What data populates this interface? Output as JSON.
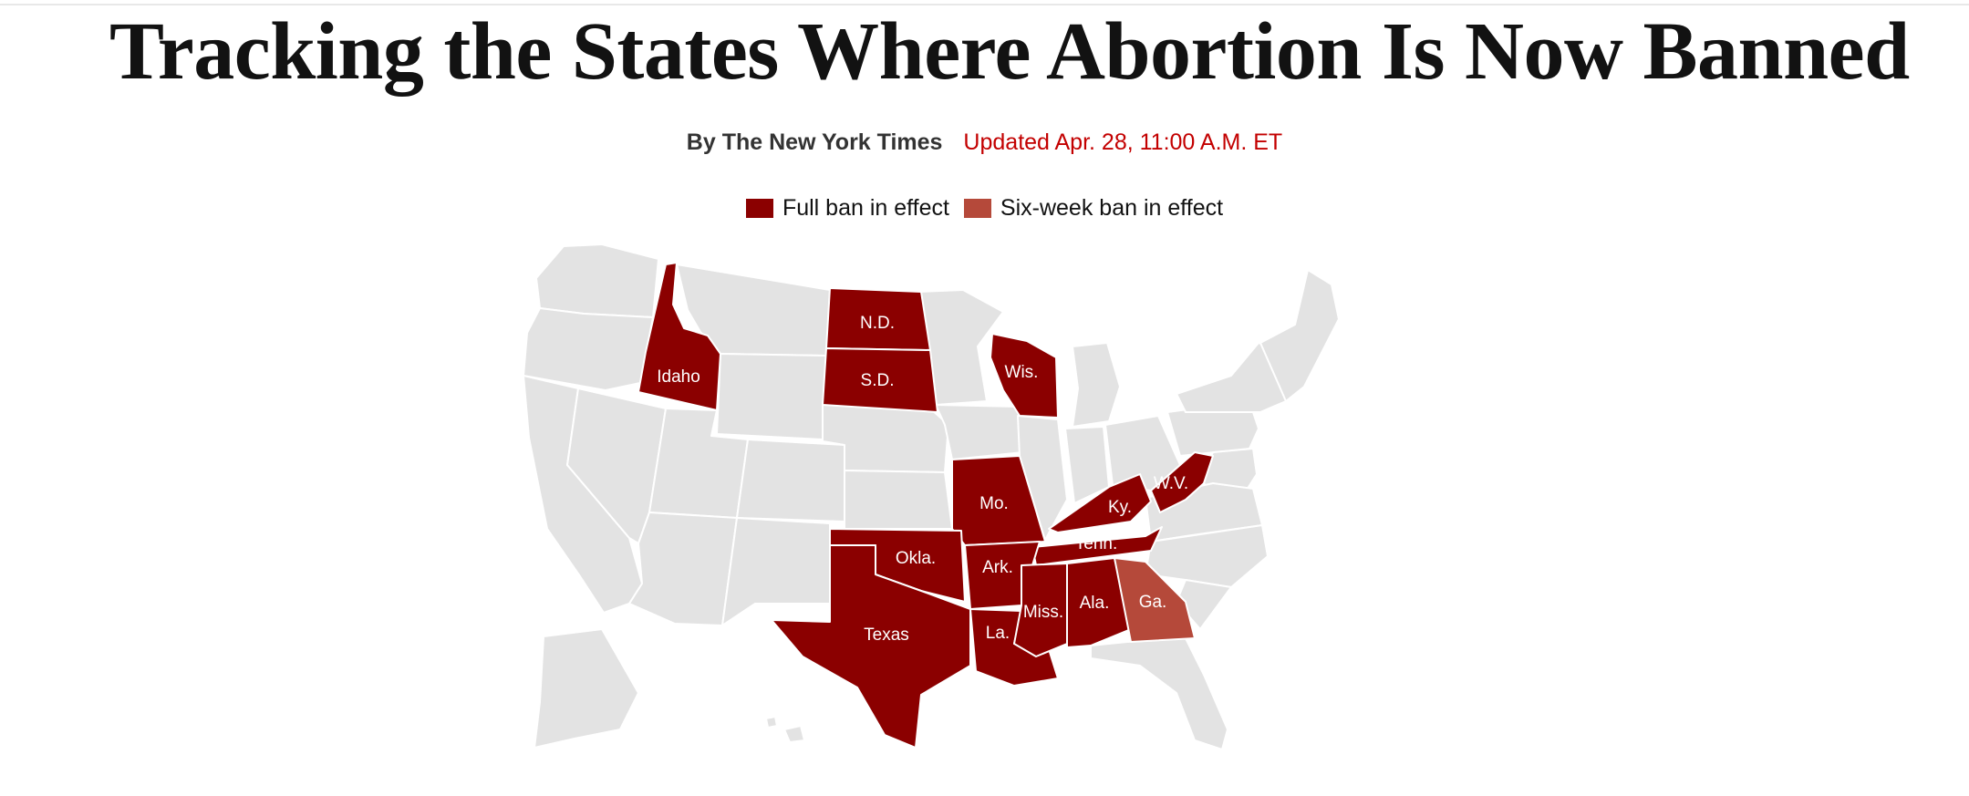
{
  "headline": "Tracking the States Where Abortion Is Now Banned",
  "byline": {
    "author": "By The New York Times",
    "updated": "Updated Apr. 28, 11:00 A.M. ET"
  },
  "legend": [
    {
      "label": "Full ban in effect",
      "color": "#8b0000"
    },
    {
      "label": "Six-week ban in effect",
      "color": "#b5493a"
    }
  ],
  "colors": {
    "full_ban": "#8b0000",
    "six_week_ban": "#b5493a",
    "no_ban": "#e3e3e3",
    "border": "#ffffff"
  },
  "map": {
    "states": [
      {
        "name": "Idaho",
        "status": "full"
      },
      {
        "name": "N.D.",
        "status": "full"
      },
      {
        "name": "S.D.",
        "status": "full"
      },
      {
        "name": "Wis.",
        "status": "full"
      },
      {
        "name": "Mo.",
        "status": "full"
      },
      {
        "name": "Ky.",
        "status": "full"
      },
      {
        "name": "W.V.",
        "status": "full"
      },
      {
        "name": "Tenn.",
        "status": "full"
      },
      {
        "name": "Okla.",
        "status": "full"
      },
      {
        "name": "Ark.",
        "status": "full"
      },
      {
        "name": "Texas",
        "status": "full"
      },
      {
        "name": "La.",
        "status": "full"
      },
      {
        "name": "Miss.",
        "status": "full"
      },
      {
        "name": "Ala.",
        "status": "full"
      },
      {
        "name": "Ga.",
        "status": "six-week"
      }
    ]
  }
}
